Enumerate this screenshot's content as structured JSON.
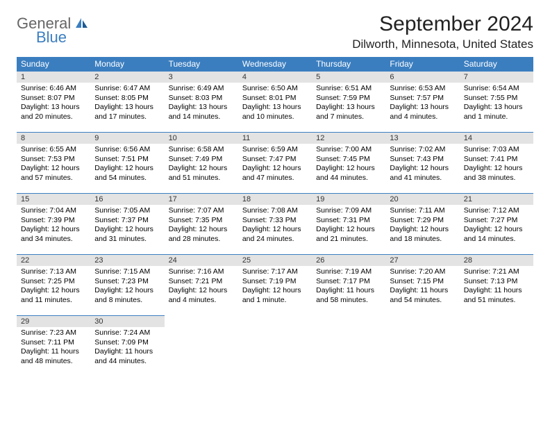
{
  "brand": {
    "name_line1": "General",
    "name_line2": "Blue",
    "name_line1_color": "#6a6a6a",
    "name_line2_color": "#3b7ec0"
  },
  "header": {
    "month_title": "September 2024",
    "location": "Dilworth, Minnesota, United States"
  },
  "colors": {
    "header_bg": "#3b7ec0",
    "header_text": "#ffffff",
    "daynum_bg": "#e3e3e3",
    "daynum_border": "#3b7ec0",
    "body_text": "#000000",
    "page_bg": "#ffffff"
  },
  "day_labels": [
    "Sunday",
    "Monday",
    "Tuesday",
    "Wednesday",
    "Thursday",
    "Friday",
    "Saturday"
  ],
  "weeks": [
    [
      {
        "n": "1",
        "sunrise": "Sunrise: 6:46 AM",
        "sunset": "Sunset: 8:07 PM",
        "daylight": "Daylight: 13 hours and 20 minutes."
      },
      {
        "n": "2",
        "sunrise": "Sunrise: 6:47 AM",
        "sunset": "Sunset: 8:05 PM",
        "daylight": "Daylight: 13 hours and 17 minutes."
      },
      {
        "n": "3",
        "sunrise": "Sunrise: 6:49 AM",
        "sunset": "Sunset: 8:03 PM",
        "daylight": "Daylight: 13 hours and 14 minutes."
      },
      {
        "n": "4",
        "sunrise": "Sunrise: 6:50 AM",
        "sunset": "Sunset: 8:01 PM",
        "daylight": "Daylight: 13 hours and 10 minutes."
      },
      {
        "n": "5",
        "sunrise": "Sunrise: 6:51 AM",
        "sunset": "Sunset: 7:59 PM",
        "daylight": "Daylight: 13 hours and 7 minutes."
      },
      {
        "n": "6",
        "sunrise": "Sunrise: 6:53 AM",
        "sunset": "Sunset: 7:57 PM",
        "daylight": "Daylight: 13 hours and 4 minutes."
      },
      {
        "n": "7",
        "sunrise": "Sunrise: 6:54 AM",
        "sunset": "Sunset: 7:55 PM",
        "daylight": "Daylight: 13 hours and 1 minute."
      }
    ],
    [
      {
        "n": "8",
        "sunrise": "Sunrise: 6:55 AM",
        "sunset": "Sunset: 7:53 PM",
        "daylight": "Daylight: 12 hours and 57 minutes."
      },
      {
        "n": "9",
        "sunrise": "Sunrise: 6:56 AM",
        "sunset": "Sunset: 7:51 PM",
        "daylight": "Daylight: 12 hours and 54 minutes."
      },
      {
        "n": "10",
        "sunrise": "Sunrise: 6:58 AM",
        "sunset": "Sunset: 7:49 PM",
        "daylight": "Daylight: 12 hours and 51 minutes."
      },
      {
        "n": "11",
        "sunrise": "Sunrise: 6:59 AM",
        "sunset": "Sunset: 7:47 PM",
        "daylight": "Daylight: 12 hours and 47 minutes."
      },
      {
        "n": "12",
        "sunrise": "Sunrise: 7:00 AM",
        "sunset": "Sunset: 7:45 PM",
        "daylight": "Daylight: 12 hours and 44 minutes."
      },
      {
        "n": "13",
        "sunrise": "Sunrise: 7:02 AM",
        "sunset": "Sunset: 7:43 PM",
        "daylight": "Daylight: 12 hours and 41 minutes."
      },
      {
        "n": "14",
        "sunrise": "Sunrise: 7:03 AM",
        "sunset": "Sunset: 7:41 PM",
        "daylight": "Daylight: 12 hours and 38 minutes."
      }
    ],
    [
      {
        "n": "15",
        "sunrise": "Sunrise: 7:04 AM",
        "sunset": "Sunset: 7:39 PM",
        "daylight": "Daylight: 12 hours and 34 minutes."
      },
      {
        "n": "16",
        "sunrise": "Sunrise: 7:05 AM",
        "sunset": "Sunset: 7:37 PM",
        "daylight": "Daylight: 12 hours and 31 minutes."
      },
      {
        "n": "17",
        "sunrise": "Sunrise: 7:07 AM",
        "sunset": "Sunset: 7:35 PM",
        "daylight": "Daylight: 12 hours and 28 minutes."
      },
      {
        "n": "18",
        "sunrise": "Sunrise: 7:08 AM",
        "sunset": "Sunset: 7:33 PM",
        "daylight": "Daylight: 12 hours and 24 minutes."
      },
      {
        "n": "19",
        "sunrise": "Sunrise: 7:09 AM",
        "sunset": "Sunset: 7:31 PM",
        "daylight": "Daylight: 12 hours and 21 minutes."
      },
      {
        "n": "20",
        "sunrise": "Sunrise: 7:11 AM",
        "sunset": "Sunset: 7:29 PM",
        "daylight": "Daylight: 12 hours and 18 minutes."
      },
      {
        "n": "21",
        "sunrise": "Sunrise: 7:12 AM",
        "sunset": "Sunset: 7:27 PM",
        "daylight": "Daylight: 12 hours and 14 minutes."
      }
    ],
    [
      {
        "n": "22",
        "sunrise": "Sunrise: 7:13 AM",
        "sunset": "Sunset: 7:25 PM",
        "daylight": "Daylight: 12 hours and 11 minutes."
      },
      {
        "n": "23",
        "sunrise": "Sunrise: 7:15 AM",
        "sunset": "Sunset: 7:23 PM",
        "daylight": "Daylight: 12 hours and 8 minutes."
      },
      {
        "n": "24",
        "sunrise": "Sunrise: 7:16 AM",
        "sunset": "Sunset: 7:21 PM",
        "daylight": "Daylight: 12 hours and 4 minutes."
      },
      {
        "n": "25",
        "sunrise": "Sunrise: 7:17 AM",
        "sunset": "Sunset: 7:19 PM",
        "daylight": "Daylight: 12 hours and 1 minute."
      },
      {
        "n": "26",
        "sunrise": "Sunrise: 7:19 AM",
        "sunset": "Sunset: 7:17 PM",
        "daylight": "Daylight: 11 hours and 58 minutes."
      },
      {
        "n": "27",
        "sunrise": "Sunrise: 7:20 AM",
        "sunset": "Sunset: 7:15 PM",
        "daylight": "Daylight: 11 hours and 54 minutes."
      },
      {
        "n": "28",
        "sunrise": "Sunrise: 7:21 AM",
        "sunset": "Sunset: 7:13 PM",
        "daylight": "Daylight: 11 hours and 51 minutes."
      }
    ],
    [
      {
        "n": "29",
        "sunrise": "Sunrise: 7:23 AM",
        "sunset": "Sunset: 7:11 PM",
        "daylight": "Daylight: 11 hours and 48 minutes."
      },
      {
        "n": "30",
        "sunrise": "Sunrise: 7:24 AM",
        "sunset": "Sunset: 7:09 PM",
        "daylight": "Daylight: 11 hours and 44 minutes."
      },
      null,
      null,
      null,
      null,
      null
    ]
  ]
}
